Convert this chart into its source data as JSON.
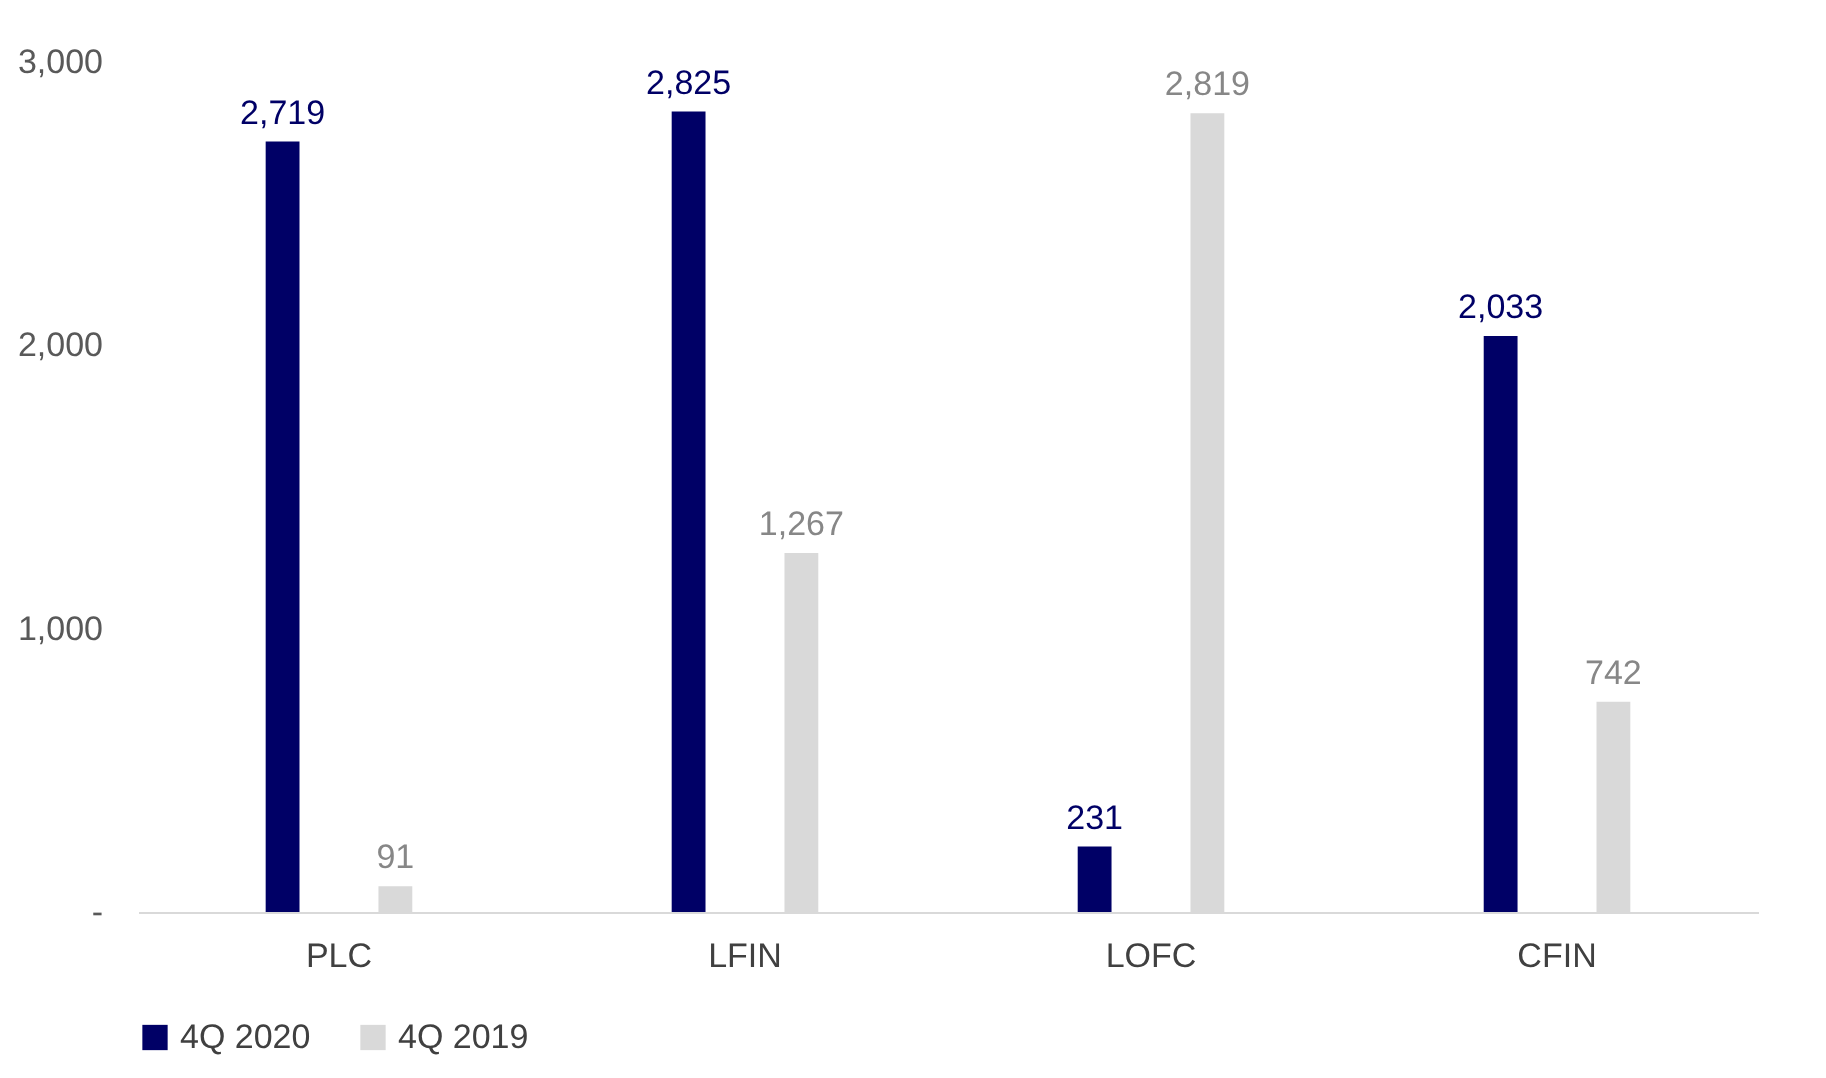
{
  "chart_data": {
    "type": "bar",
    "categories": [
      "PLC",
      "LFIN",
      "LOFC",
      "CFIN"
    ],
    "series": [
      {
        "name": "4Q 2020",
        "color": "#000066",
        "values": [
          2719,
          2825,
          231,
          2033
        ],
        "value_labels": [
          "2,719",
          "2,825",
          "231",
          "2,033"
        ]
      },
      {
        "name": "4Q 2019",
        "color": "#d9d9d9",
        "values": [
          91,
          1267,
          2819,
          742
        ],
        "value_labels": [
          "91",
          "1,267",
          "2,819",
          "742"
        ]
      }
    ],
    "ylim": [
      0,
      3000
    ],
    "yticks": [
      {
        "value": 0,
        "label": "-"
      },
      {
        "value": 1000,
        "label": "1,000"
      },
      {
        "value": 2000,
        "label": "2,000"
      },
      {
        "value": 3000,
        "label": "3,000"
      }
    ],
    "legend": "bottom",
    "grid": false
  }
}
